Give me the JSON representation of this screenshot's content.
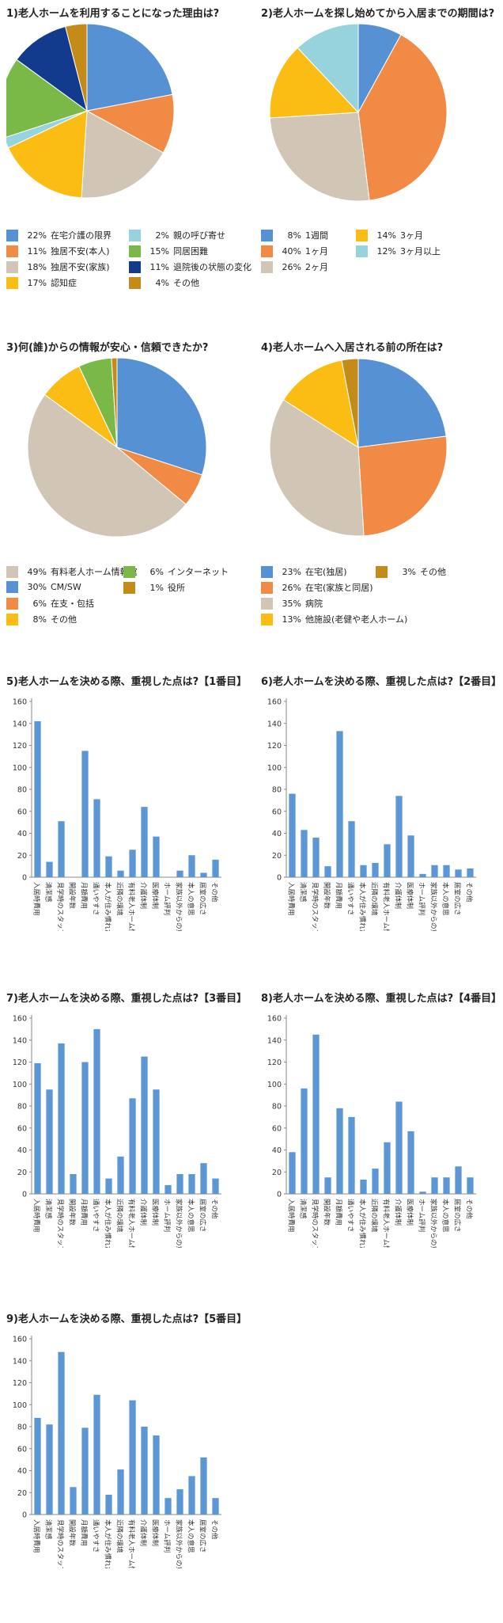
{
  "colors": {
    "blue": "#5591d3",
    "orange": "#f08a44",
    "beige": "#d1c6b5",
    "yellow": "#fbbd13",
    "lightblue": "#96d3dc",
    "green": "#7ab948",
    "navy": "#123b8d",
    "gold": "#c58b18",
    "bar": "#5b96d5"
  },
  "chart_data": [
    {
      "type": "pie",
      "title": "1)老人ホームを利用することになった理由は?",
      "slices": [
        {
          "label": "在宅介護の限界",
          "value": 22,
          "text": "22%",
          "color": "#5591d3"
        },
        {
          "label": "独居不安(本人)",
          "value": 11,
          "text": "11%",
          "color": "#f08a44"
        },
        {
          "label": "独居不安(家族)",
          "value": 18,
          "text": "18%",
          "color": "#d1c6b5"
        },
        {
          "label": "認知症",
          "value": 17,
          "text": "17%",
          "color": "#fbbd13"
        },
        {
          "label": "親の呼び寄せ",
          "value": 2,
          "text": "2%",
          "color": "#96d3dc"
        },
        {
          "label": "同居困難",
          "value": 15,
          "text": "15%",
          "color": "#7ab948"
        },
        {
          "label": "退院後の状態の変化",
          "value": 11,
          "text": "11%",
          "color": "#123b8d"
        },
        {
          "label": "その他",
          "value": 4,
          "text": "4%",
          "color": "#c58b18"
        }
      ],
      "legend_columns": [
        [
          0,
          1,
          2,
          3
        ],
        [
          4,
          5,
          6,
          7
        ]
      ]
    },
    {
      "type": "pie",
      "title": "2)老人ホームを探し始めてから入居までの期間は?",
      "slices": [
        {
          "label": "1週間",
          "value": 8,
          "text": "8%",
          "color": "#5591d3"
        },
        {
          "label": "1ヶ月",
          "value": 40,
          "text": "40%",
          "color": "#f08a44"
        },
        {
          "label": "2ヶ月",
          "value": 26,
          "text": "26%",
          "color": "#d1c6b5"
        },
        {
          "label": "3ヶ月",
          "value": 14,
          "text": "14%",
          "color": "#fbbd13"
        },
        {
          "label": "3ヶ月以上",
          "value": 12,
          "text": "12%",
          "color": "#96d3dc"
        }
      ],
      "legend_columns": [
        [
          0,
          1,
          2
        ],
        [
          3,
          4
        ]
      ]
    },
    {
      "type": "pie",
      "title": "3)何(誰)からの情報が安心・信頼できたか?",
      "slices": [
        {
          "label": "CM/SW",
          "value": 30,
          "text": "30%",
          "color": "#5591d3"
        },
        {
          "label": "在支・包括",
          "value": 6,
          "text": "6%",
          "color": "#f08a44"
        },
        {
          "label": "有料老人ホーム情報館",
          "value": 49,
          "text": "49%",
          "color": "#d1c6b5"
        },
        {
          "label": "その他",
          "value": 8,
          "text": "8%",
          "color": "#fbbd13"
        },
        {
          "label": "インターネット",
          "value": 6,
          "text": "6%",
          "color": "#7ab948"
        },
        {
          "label": "役所",
          "value": 1,
          "text": "1%",
          "color": "#c58b18"
        }
      ],
      "legend_columns": [
        [
          2,
          0,
          1,
          3
        ],
        [
          4,
          5
        ]
      ]
    },
    {
      "type": "pie",
      "title": "4)老人ホームへ入居される前の所在は?",
      "slices": [
        {
          "label": "在宅(独居)",
          "value": 23,
          "text": "23%",
          "color": "#5591d3"
        },
        {
          "label": "在宅(家族と同居)",
          "value": 26,
          "text": "26%",
          "color": "#f08a44"
        },
        {
          "label": "病院",
          "value": 35,
          "text": "35%",
          "color": "#d1c6b5"
        },
        {
          "label": "他施設(老健や老人ホーム)",
          "value": 13,
          "text": "13%",
          "color": "#fbbd13"
        },
        {
          "label": "その他",
          "value": 3,
          "text": "3%",
          "color": "#c58b18"
        }
      ],
      "legend_columns": [
        [
          0,
          1,
          2,
          3
        ],
        [
          4
        ]
      ]
    },
    {
      "type": "bar",
      "title": "5)老人ホームを決める際、重視した点は?【1番目】",
      "categories": [
        "入居時費用",
        "清潔感",
        "見学時のスタッフ対応",
        "開設年数",
        "月額費用",
        "通いやすさ",
        "本人が住み慣れた土地",
        "近隣の環境",
        "有料老人ホーム情報館からの勧め",
        "介護体制",
        "医療体制",
        "ホーム評判",
        "家族以外からの意見",
        "本人の意思",
        "居室の広さ",
        "その他"
      ],
      "values": [
        142,
        14,
        51,
        0,
        115,
        71,
        19,
        6,
        25,
        64,
        37,
        0,
        6,
        20,
        4,
        16
      ],
      "ylim": [
        0,
        160
      ],
      "yticks": [
        0,
        20,
        40,
        60,
        80,
        100,
        120,
        140,
        160
      ]
    },
    {
      "type": "bar",
      "title": "6)老人ホームを決める際、重視した点は?【2番目】",
      "categories": [
        "入居時費用",
        "清潔感",
        "見学時のスタッフ対応",
        "開設年数",
        "月額費用",
        "通いやすさ",
        "本人が住み慣れた土地",
        "近隣の環境",
        "有料老人ホーム情報館からの勧め",
        "介護体制",
        "医療体制",
        "ホーム評判",
        "家族以外からの意見",
        "本人の意思",
        "居室の広さ",
        "その他"
      ],
      "values": [
        76,
        43,
        36,
        10,
        133,
        51,
        11,
        13,
        30,
        74,
        38,
        3,
        11,
        11,
        7,
        8
      ],
      "ylim": [
        0,
        160
      ],
      "yticks": [
        0,
        20,
        40,
        60,
        80,
        100,
        120,
        140,
        160
      ]
    },
    {
      "type": "bar",
      "title": "7)老人ホームを決める際、重視した点は?【3番目】",
      "categories": [
        "入居時費用",
        "清潔感",
        "見学時のスタッフ対応",
        "開設年数",
        "月額費用",
        "通いやすさ",
        "本人が住み慣れた土地",
        "近隣の環境",
        "有料老人ホーム情報館からの勧め",
        "介護体制",
        "医療体制",
        "ホーム評判",
        "家族以外からの意見",
        "本人の意思",
        "居室の広さ",
        "その他"
      ],
      "values": [
        119,
        95,
        137,
        18,
        120,
        150,
        14,
        34,
        87,
        125,
        95,
        8,
        18,
        18,
        28,
        14
      ],
      "ylim": [
        0,
        160
      ],
      "yticks": [
        0,
        20,
        40,
        60,
        80,
        100,
        120,
        140,
        160
      ]
    },
    {
      "type": "bar",
      "title": "8)老人ホームを決める際、重視した点は?【4番目】",
      "categories": [
        "入居時費用",
        "清潔感",
        "見学時のスタッフ対応",
        "開設年数",
        "月額費用",
        "通いやすさ",
        "本人が住み慣れた土地",
        "近隣の環境",
        "有料老人ホーム情報館からの勧め",
        "介護体制",
        "医療体制",
        "ホーム評判",
        "家族以外からの意見",
        "本人の意思",
        "居室の広さ",
        "その他"
      ],
      "values": [
        38,
        96,
        145,
        15,
        78,
        70,
        13,
        23,
        47,
        84,
        57,
        2,
        15,
        15,
        25,
        15
      ],
      "ylim": [
        0,
        160
      ],
      "yticks": [
        0,
        20,
        40,
        60,
        80,
        100,
        120,
        140,
        160
      ]
    },
    {
      "type": "bar",
      "title": "9)老人ホームを決める際、重視した点は?【5番目】",
      "categories": [
        "入居時費用",
        "清潔感",
        "見学時のスタッフ対応",
        "開設年数",
        "月額費用",
        "通いやすさ",
        "本人が住み慣れた土地",
        "近隣の環境",
        "有料老人ホーム情報館からの勧め",
        "介護体制",
        "医療体制",
        "ホーム評判",
        "家族以外からの意見",
        "本人の意思",
        "居室の広さ",
        "その他"
      ],
      "values": [
        88,
        82,
        148,
        25,
        79,
        109,
        18,
        41,
        104,
        80,
        72,
        15,
        23,
        35,
        52,
        15
      ],
      "ylim": [
        0,
        160
      ],
      "yticks": [
        0,
        20,
        40,
        60,
        80,
        100,
        120,
        140,
        160
      ]
    }
  ]
}
